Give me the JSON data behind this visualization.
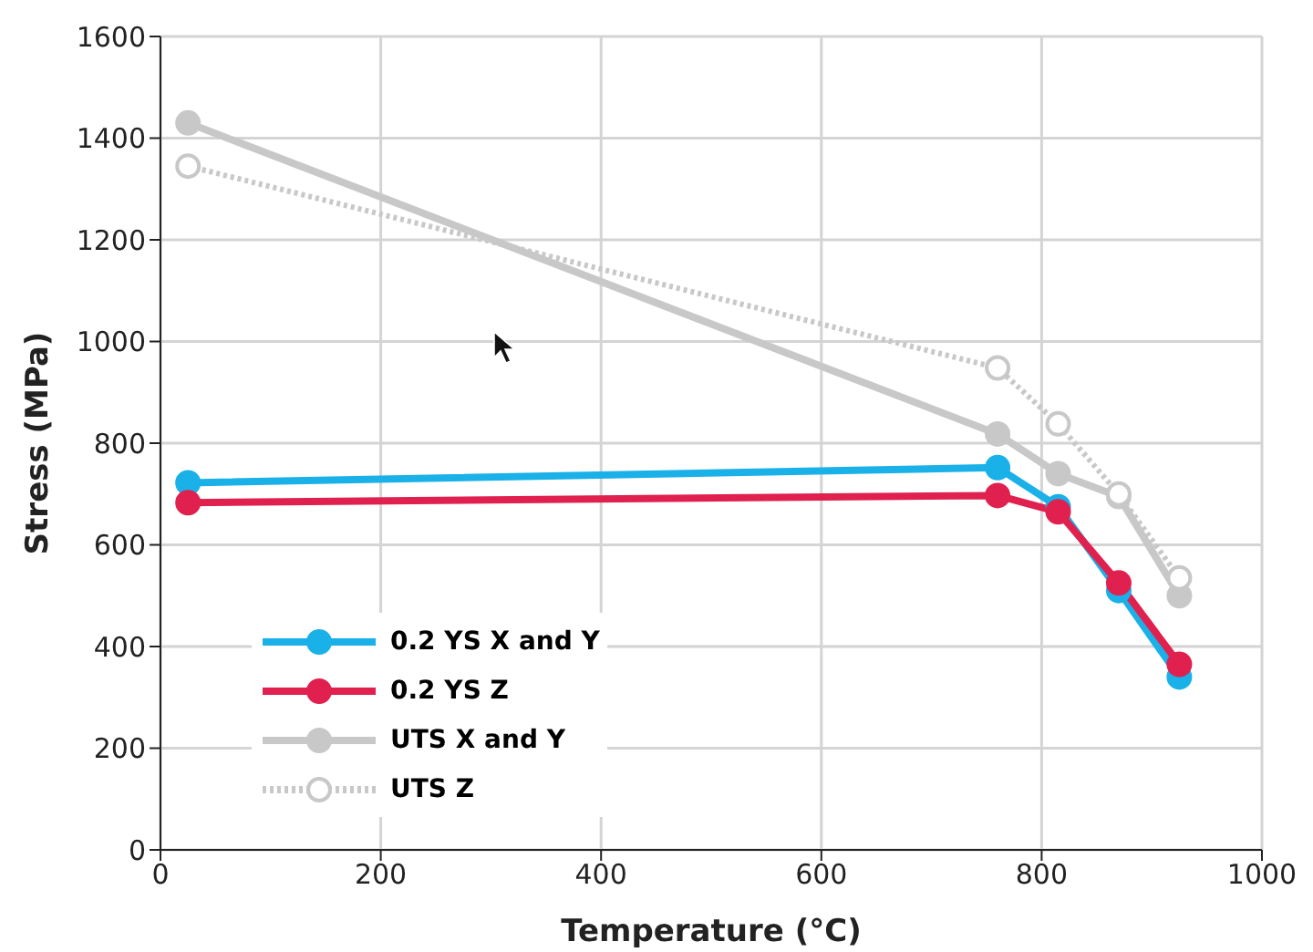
{
  "chart_data": {
    "type": "line",
    "xlabel": "Temperature (°C)",
    "ylabel": "Stress (MPa)",
    "x": [
      25,
      760,
      815,
      870,
      925
    ],
    "series": [
      {
        "name": "0.2 YS X and Y",
        "color": "#1ab0e8",
        "values": [
          722,
          752,
          675,
          510,
          340
        ]
      },
      {
        "name": "0.2 YS Z",
        "color": "#e0204e",
        "values": [
          683,
          697,
          665,
          525,
          365
        ]
      },
      {
        "name": "UTS X and Y",
        "color": "#c8c8c8",
        "values": [
          1430,
          818,
          740,
          695,
          500
        ]
      },
      {
        "name": "UTS Z",
        "color": "#c8c8c8",
        "values": [
          1345,
          948,
          838,
          700,
          535
        ],
        "line_style": "dotted",
        "marker": "circle-open"
      }
    ],
    "xlim": [
      0,
      1000
    ],
    "xticks": [
      0,
      200,
      400,
      600,
      800,
      1000
    ],
    "ylim": [
      0,
      1600
    ],
    "yticks": [
      0,
      200,
      400,
      600,
      800,
      1000,
      1200,
      1400,
      1600
    ],
    "grid": true,
    "legend": "bottom left",
    "marker": "circle",
    "line_style": "solid"
  }
}
